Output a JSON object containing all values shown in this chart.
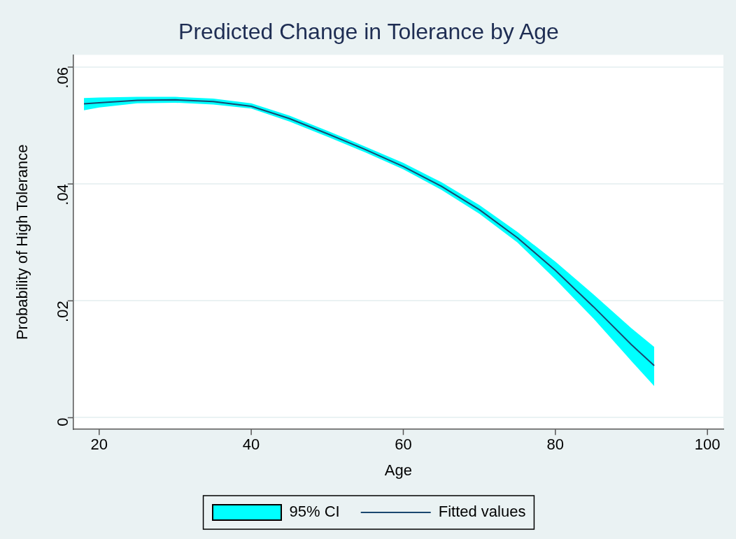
{
  "chart_data": {
    "type": "line",
    "title": "Predicted Change in Tolerance by Age",
    "xlabel": "Age",
    "ylabel": "Probability of High Tolerance",
    "x": [
      18,
      20,
      25,
      30,
      35,
      40,
      45,
      50,
      55,
      60,
      65,
      70,
      75,
      80,
      85,
      90,
      93
    ],
    "series": [
      {
        "name": "Fitted values",
        "type": "line",
        "color": "#1a476f",
        "values": [
          0.0537,
          0.0539,
          0.0543,
          0.0544,
          0.0541,
          0.0533,
          0.0512,
          0.0486,
          0.0459,
          0.043,
          0.0396,
          0.0356,
          0.0308,
          0.0252,
          0.019,
          0.0125,
          0.0089
        ],
        "lower": [
          0.0526,
          0.0531,
          0.0538,
          0.0539,
          0.0536,
          0.0529,
          0.0507,
          0.0481,
          0.0454,
          0.0425,
          0.039,
          0.0349,
          0.03,
          0.0237,
          0.017,
          0.0097,
          0.0054
        ],
        "upper": [
          0.0547,
          0.0548,
          0.0549,
          0.0549,
          0.0546,
          0.0538,
          0.0517,
          0.0491,
          0.0464,
          0.0436,
          0.0403,
          0.0364,
          0.0318,
          0.0267,
          0.0211,
          0.0153,
          0.0121
        ]
      }
    ],
    "annotations": [
      "95% CI"
    ],
    "xlim": [
      16.6,
      102.1
    ],
    "xticks": [
      20,
      40,
      60,
      80,
      100
    ],
    "ylim": [
      -0.002,
      0.0621
    ],
    "yticks": [
      {
        "value": 0,
        "label": "0"
      },
      {
        "value": 0.02,
        "label": ".02"
      },
      {
        "value": 0.04,
        "label": ".04"
      },
      {
        "value": 0.06,
        "label": ".06"
      }
    ],
    "grid": "y",
    "legend": "bottom",
    "marker": "none",
    "line_style": "solid"
  }
}
